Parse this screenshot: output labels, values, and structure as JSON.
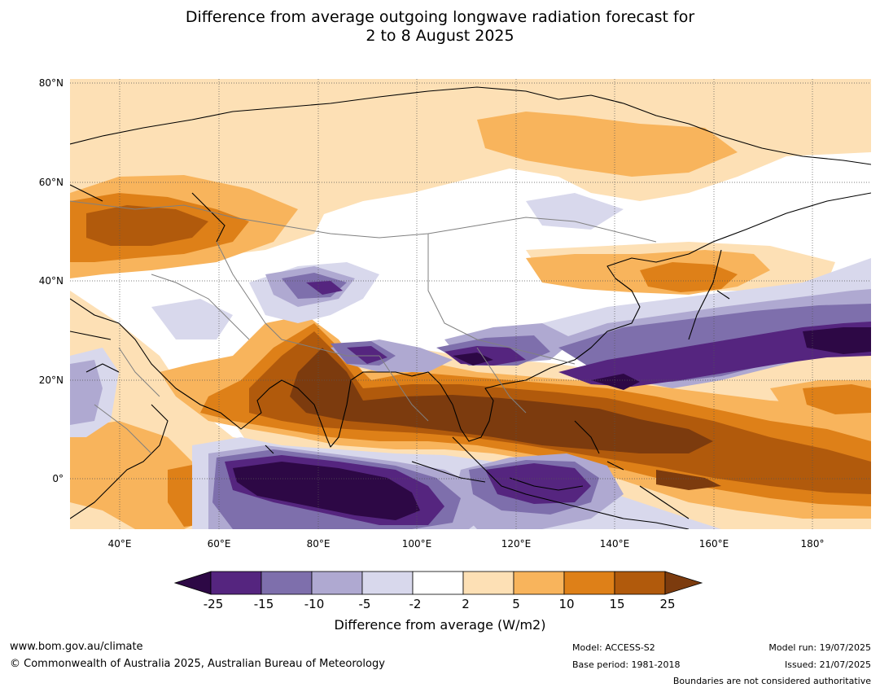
{
  "title": {
    "line1": "Difference from average outgoing longwave radiation forecast for",
    "line2": "2 to 8 August 2025"
  },
  "map": {
    "lat_labels": [
      "80°N",
      "60°N",
      "40°N",
      "20°N",
      "0°"
    ],
    "lon_labels": [
      "40°E",
      "60°E",
      "80°E",
      "100°E",
      "120°E",
      "140°E",
      "160°E",
      "180°"
    ],
    "extent": {
      "lon": [
        30,
        192
      ],
      "lat": [
        -10,
        80
      ]
    }
  },
  "colorbar": {
    "ticks": [
      "-25",
      "-15",
      "-10",
      "-5",
      "-2",
      "2",
      "5",
      "10",
      "15",
      "25"
    ],
    "colors": [
      "#2d0845",
      "#55257f",
      "#7e6fac",
      "#afa9d1",
      "#d8d8ec",
      "#ffffff",
      "#fde0b5",
      "#f8b45c",
      "#de8018",
      "#b15a0c",
      "#7c3b0e"
    ],
    "label": "Difference from average (W/m2)"
  },
  "footer": {
    "website": "www.bom.gov.au/climate",
    "copyright": "© Commonwealth of Australia 2025, Australian Bureau of Meteorology",
    "model": "Model: ACCESS-S2",
    "base_period": "Base period: 1981-2018",
    "model_run": "Model run: 19/07/2025",
    "issued": "Issued: 21/07/2025",
    "disclaimer": "Boundaries are not considered authoritative"
  }
}
